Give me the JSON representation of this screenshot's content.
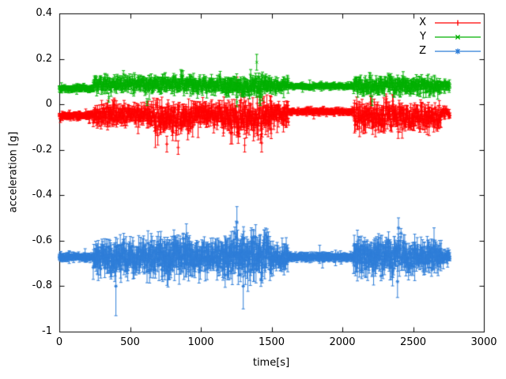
{
  "chart_data": {
    "type": "scatter",
    "style": "points-with-errorbars",
    "title": "",
    "xlabel": "time[s]",
    "ylabel": "acceleration [g]",
    "xlim": [
      0,
      3000
    ],
    "ylim": [
      -1,
      0.4
    ],
    "xticks": [
      0,
      500,
      1000,
      1500,
      2000,
      2500,
      3000
    ],
    "yticks": [
      -1,
      -0.8,
      -0.6,
      -0.4,
      -0.2,
      0,
      0.2,
      0.4
    ],
    "grid": false,
    "legend_position": "top-right-inside",
    "axis_color": "#000000",
    "background_color": "#ffffff",
    "series": [
      {
        "name": "X",
        "color": "#ff0000",
        "marker": "plus",
        "segments": [
          {
            "t0": 0,
            "t1": 240,
            "mean": -0.05,
            "noise": 0.006,
            "err": 0.01,
            "step": 2.2
          },
          {
            "t0": 240,
            "t1": 650,
            "mean": -0.045,
            "noise": 0.022,
            "err": 0.022,
            "step": 2.2
          },
          {
            "t0": 650,
            "t1": 950,
            "mean": -0.06,
            "noise": 0.033,
            "err": 0.03,
            "step": 2.2
          },
          {
            "t0": 950,
            "t1": 1150,
            "mean": -0.045,
            "noise": 0.024,
            "err": 0.025,
            "step": 2.2
          },
          {
            "t0": 1150,
            "t1": 1500,
            "mean": -0.06,
            "noise": 0.036,
            "err": 0.032,
            "step": 2.2
          },
          {
            "t0": 1500,
            "t1": 1620,
            "mean": -0.045,
            "noise": 0.02,
            "err": 0.02,
            "step": 2.2
          },
          {
            "t0": 1620,
            "t1": 2080,
            "mean": -0.032,
            "noise": 0.005,
            "err": 0.009,
            "step": 2.2
          },
          {
            "t0": 2080,
            "t1": 2450,
            "mean": -0.05,
            "noise": 0.028,
            "err": 0.026,
            "step": 2.2
          },
          {
            "t0": 2450,
            "t1": 2700,
            "mean": -0.055,
            "noise": 0.025,
            "err": 0.024,
            "step": 2.2
          },
          {
            "t0": 2700,
            "t1": 2760,
            "mean": -0.04,
            "noise": 0.01,
            "err": 0.012,
            "step": 2.2
          }
        ],
        "outliers": [
          {
            "t": 760,
            "v": -0.175,
            "err": 0.035
          },
          {
            "t": 840,
            "v": -0.19,
            "err": 0.03
          },
          {
            "t": 1255,
            "v": 0.095,
            "err": 0.025
          },
          {
            "t": 1310,
            "v": -0.18,
            "err": 0.03
          },
          {
            "t": 1430,
            "v": -0.17,
            "err": 0.04
          },
          {
            "t": 1840,
            "v": -0.04,
            "err": 0.012
          }
        ]
      },
      {
        "name": "Y",
        "color": "#00b000",
        "marker": "cross",
        "segments": [
          {
            "t0": 0,
            "t1": 240,
            "mean": 0.07,
            "noise": 0.005,
            "err": 0.009,
            "step": 2.2
          },
          {
            "t0": 240,
            "t1": 650,
            "mean": 0.088,
            "noise": 0.016,
            "err": 0.016,
            "step": 2.2
          },
          {
            "t0": 650,
            "t1": 950,
            "mean": 0.09,
            "noise": 0.018,
            "err": 0.018,
            "step": 2.2
          },
          {
            "t0": 950,
            "t1": 1150,
            "mean": 0.085,
            "noise": 0.015,
            "err": 0.016,
            "step": 2.2
          },
          {
            "t0": 1150,
            "t1": 1500,
            "mean": 0.08,
            "noise": 0.02,
            "err": 0.02,
            "step": 2.2
          },
          {
            "t0": 1500,
            "t1": 1620,
            "mean": 0.085,
            "noise": 0.014,
            "err": 0.015,
            "step": 2.2
          },
          {
            "t0": 1620,
            "t1": 2080,
            "mean": 0.08,
            "noise": 0.004,
            "err": 0.008,
            "step": 2.2
          },
          {
            "t0": 2080,
            "t1": 2450,
            "mean": 0.085,
            "noise": 0.018,
            "err": 0.018,
            "step": 2.2
          },
          {
            "t0": 2450,
            "t1": 2700,
            "mean": 0.08,
            "noise": 0.016,
            "err": 0.016,
            "step": 2.2
          },
          {
            "t0": 2700,
            "t1": 2760,
            "mean": 0.085,
            "noise": 0.008,
            "err": 0.01,
            "step": 2.2
          }
        ],
        "outliers": [
          {
            "t": 350,
            "v": 0.03,
            "err": 0.02
          },
          {
            "t": 620,
            "v": 0.01,
            "err": 0.015
          },
          {
            "t": 1255,
            "v": 0.01,
            "err": 0.02
          },
          {
            "t": 1395,
            "v": 0.185,
            "err": 0.035
          },
          {
            "t": 1840,
            "v": 0.085,
            "err": 0.01
          },
          {
            "t": 2210,
            "v": 0.015,
            "err": 0.02
          }
        ]
      },
      {
        "name": "Z",
        "color": "#2f7ed8",
        "marker": "asterisk",
        "segments": [
          {
            "t0": 0,
            "t1": 240,
            "mean": -0.672,
            "noise": 0.005,
            "err": 0.012,
            "step": 2.2
          },
          {
            "t0": 240,
            "t1": 420,
            "mean": -0.67,
            "noise": 0.03,
            "err": 0.035,
            "step": 2.2
          },
          {
            "t0": 420,
            "t1": 700,
            "mean": -0.67,
            "noise": 0.038,
            "err": 0.04,
            "step": 2.2
          },
          {
            "t0": 700,
            "t1": 950,
            "mean": -0.665,
            "noise": 0.042,
            "err": 0.045,
            "step": 2.2
          },
          {
            "t0": 950,
            "t1": 1150,
            "mean": -0.67,
            "noise": 0.03,
            "err": 0.035,
            "step": 2.2
          },
          {
            "t0": 1150,
            "t1": 1500,
            "mean": -0.67,
            "noise": 0.045,
            "err": 0.05,
            "step": 2.2
          },
          {
            "t0": 1500,
            "t1": 1620,
            "mean": -0.672,
            "noise": 0.025,
            "err": 0.03,
            "step": 2.2
          },
          {
            "t0": 1620,
            "t1": 2080,
            "mean": -0.672,
            "noise": 0.005,
            "err": 0.012,
            "step": 2.2
          },
          {
            "t0": 2080,
            "t1": 2450,
            "mean": -0.668,
            "noise": 0.035,
            "err": 0.04,
            "step": 2.2
          },
          {
            "t0": 2450,
            "t1": 2700,
            "mean": -0.67,
            "noise": 0.03,
            "err": 0.035,
            "step": 2.2
          },
          {
            "t0": 2700,
            "t1": 2760,
            "mean": -0.672,
            "noise": 0.012,
            "err": 0.015,
            "step": 2.2
          }
        ],
        "outliers": [
          {
            "t": 400,
            "v": -0.8,
            "err": 0.13
          },
          {
            "t": 1255,
            "v": -0.52,
            "err": 0.07
          },
          {
            "t": 1300,
            "v": -0.8,
            "err": 0.1
          },
          {
            "t": 1840,
            "v": -0.66,
            "err": 0.04
          },
          {
            "t": 1860,
            "v": -0.69,
            "err": 0.03
          },
          {
            "t": 2390,
            "v": -0.78,
            "err": 0.07
          }
        ]
      }
    ]
  }
}
